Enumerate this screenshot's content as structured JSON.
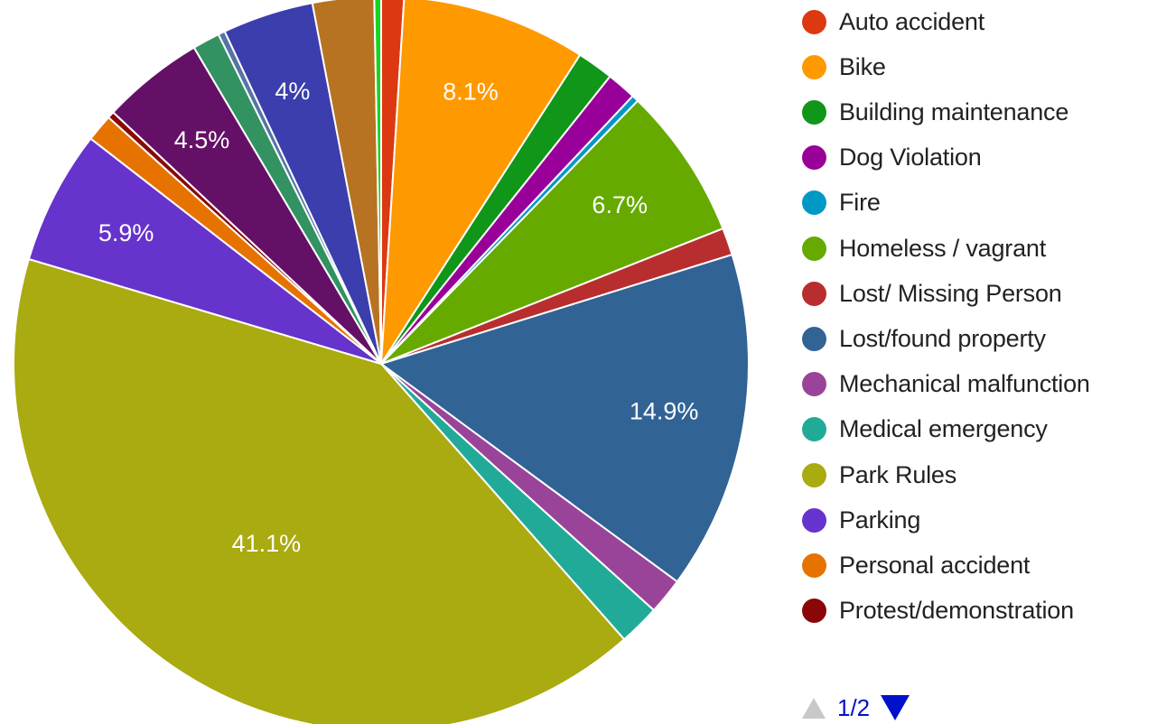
{
  "chart_data": {
    "type": "pie",
    "slices": [
      {
        "label": "Auto accident",
        "value": 1.0,
        "color": "#dc3912"
      },
      {
        "label": "Bike",
        "value": 8.1,
        "color": "#ff9900",
        "data_label": "8.1%"
      },
      {
        "label": "Building maintenance",
        "value": 1.6,
        "color": "#109618"
      },
      {
        "label": "Dog Violation",
        "value": 1.3,
        "color": "#990099"
      },
      {
        "label": "Fire",
        "value": 0.3,
        "color": "#0099c6"
      },
      {
        "label": "Homeless / vagrant",
        "value": 6.7,
        "color": "#66aa00",
        "data_label": "6.7%"
      },
      {
        "label": "Lost/ Missing Person",
        "value": 1.2,
        "color": "#b82e2e"
      },
      {
        "label": "Lost/found property",
        "value": 14.9,
        "color": "#316395",
        "data_label": "14.9%"
      },
      {
        "label": "Mechanical malfunction",
        "value": 1.6,
        "color": "#994499"
      },
      {
        "label": "Medical emergency",
        "value": 1.8,
        "color": "#22aa99"
      },
      {
        "label": "Park Rules",
        "value": 41.1,
        "color": "#aaaa11",
        "data_label": "41.1%"
      },
      {
        "label": "Parking",
        "value": 5.9,
        "color": "#6633cc",
        "data_label": "5.9%"
      },
      {
        "label": "Personal accident",
        "value": 1.2,
        "color": "#e67300"
      },
      {
        "label": "Protest/demonstration",
        "value": 0.3,
        "color": "#8b0707"
      },
      {
        "label": "",
        "value": 4.5,
        "color": "#651067",
        "data_label": "4.5%"
      },
      {
        "label": "",
        "value": 1.2,
        "color": "#329262"
      },
      {
        "label": "",
        "value": 0.3,
        "color": "#5574a6"
      },
      {
        "label": "",
        "value": 4.0,
        "color": "#3b3eac",
        "data_label": "4%"
      },
      {
        "label": "",
        "value": 2.7,
        "color": "#b77322"
      },
      {
        "label": "",
        "value": 0.3,
        "color": "#16d620"
      }
    ],
    "legend_position": "right"
  },
  "legend": {
    "items": [
      {
        "label": "Auto accident",
        "color": "#dc3912"
      },
      {
        "label": "Bike",
        "color": "#ff9900"
      },
      {
        "label": "Building maintenance",
        "color": "#109618"
      },
      {
        "label": "Dog Violation",
        "color": "#990099"
      },
      {
        "label": "Fire",
        "color": "#0099c6"
      },
      {
        "label": "Homeless / vagrant",
        "color": "#66aa00"
      },
      {
        "label": "Lost/ Missing Person",
        "color": "#b82e2e"
      },
      {
        "label": "Lost/found property",
        "color": "#316395"
      },
      {
        "label": "Mechanical malfunction",
        "color": "#994499"
      },
      {
        "label": "Medical emergency",
        "color": "#22aa99"
      },
      {
        "label": "Park Rules",
        "color": "#aaaa11"
      },
      {
        "label": "Parking",
        "color": "#6633cc"
      },
      {
        "label": "Personal accident",
        "color": "#e67300"
      },
      {
        "label": "Protest/demonstration",
        "color": "#8b0707"
      }
    ],
    "pager": {
      "text": "1/2",
      "prev_icon": "triangle-up-icon",
      "next_icon": "triangle-down-icon"
    }
  }
}
